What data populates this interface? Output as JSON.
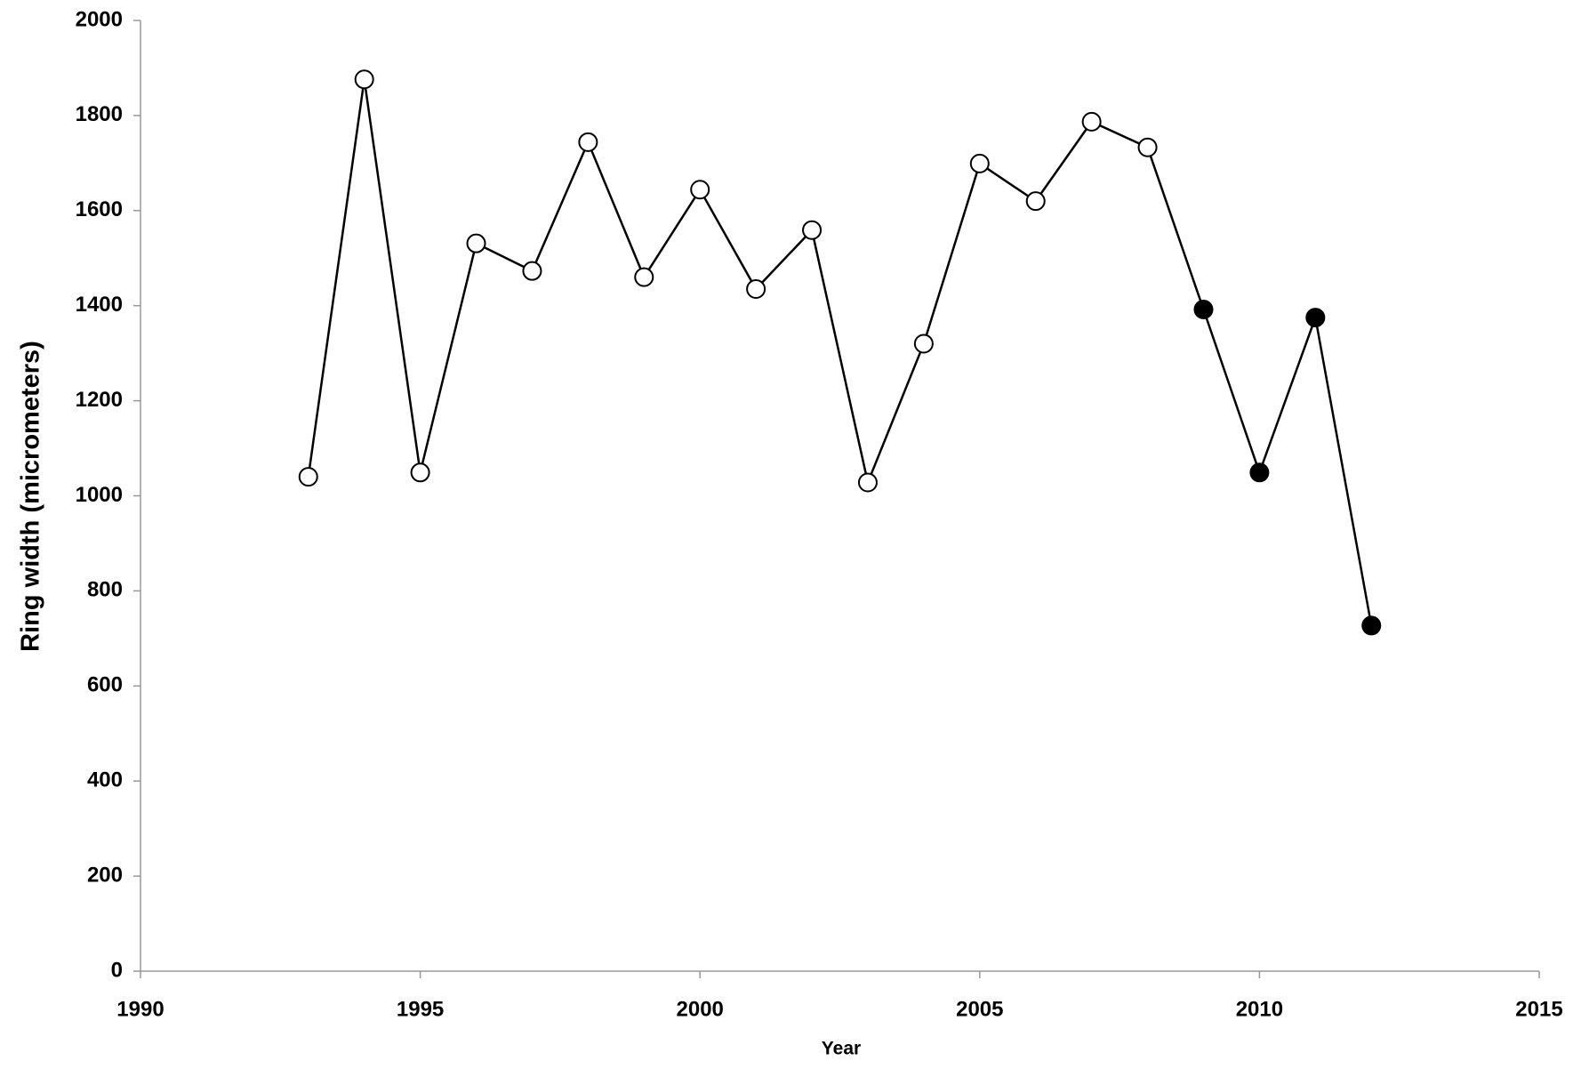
{
  "chart_data": {
    "type": "line",
    "x_label": "Year",
    "y_label": "Ring width (micrometers)",
    "x": [
      1993,
      1994,
      1995,
      1996,
      1997,
      1998,
      1999,
      2000,
      2001,
      2002,
      2003,
      2004,
      2005,
      2006,
      2007,
      2008,
      2009,
      2010,
      2011,
      2012
    ],
    "series": [
      {
        "color": "#000000",
        "values": [
          1040,
          1876,
          1049,
          1531,
          1473,
          1744,
          1460,
          1644,
          1435,
          1559,
          1028,
          1320,
          1699,
          1620,
          1787,
          1733,
          1392,
          1049,
          1375,
          727
        ],
        "marker_colors": [
          "#ffffff",
          "#ffffff",
          "#ffffff",
          "#ffffff",
          "#ffffff",
          "#ffffff",
          "#ffffff",
          "#ffffff",
          "#ffffff",
          "#ffffff",
          "#ffffff",
          "#ffffff",
          "#ffffff",
          "#ffffff",
          "#ffffff",
          "#ffffff",
          "#000000",
          "#000000",
          "#000000",
          "#000000"
        ]
      }
    ],
    "xlim": [
      1990,
      2015
    ],
    "xticks": [
      1990,
      1995,
      2000,
      2005,
      2010,
      2015
    ],
    "ylim": [
      0,
      2000
    ],
    "yticks": [
      0,
      200,
      400,
      600,
      800,
      1000,
      1200,
      1400,
      1600,
      1800,
      2000
    ],
    "grid": false
  }
}
